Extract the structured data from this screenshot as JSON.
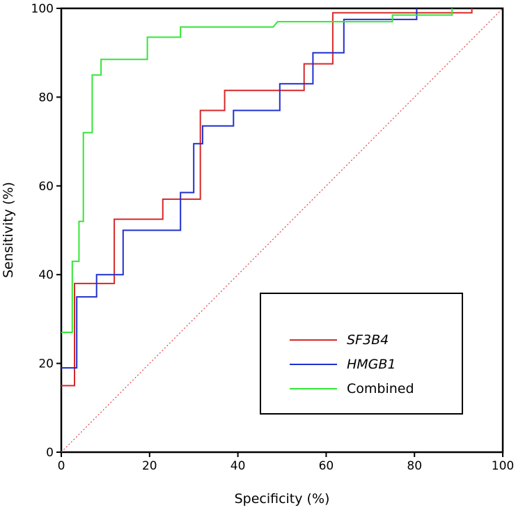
{
  "chart_data": {
    "type": "line",
    "title": "",
    "xlabel": "Specificity (%)",
    "ylabel": "Sensitivity (%)",
    "xlim": [
      0,
      100
    ],
    "ylim": [
      0,
      100
    ],
    "x_ticks": [
      "0",
      "20",
      "40",
      "60",
      "80",
      "100"
    ],
    "y_ticks": [
      "0",
      "20",
      "40",
      "60",
      "80",
      "100"
    ],
    "grid": false,
    "legend_position": "bottom-right",
    "reference_line": {
      "from": [
        0,
        0
      ],
      "to": [
        100,
        100
      ],
      "style": "dotted",
      "color": "#e05050"
    },
    "series": [
      {
        "name": "SF3B4",
        "italic": true,
        "color": "#d62728",
        "points": [
          [
            0,
            15
          ],
          [
            3,
            15
          ],
          [
            3,
            38
          ],
          [
            12,
            38
          ],
          [
            12,
            52.5
          ],
          [
            23,
            52.5
          ],
          [
            23,
            57
          ],
          [
            31.5,
            57
          ],
          [
            31.5,
            77
          ],
          [
            37,
            77
          ],
          [
            37,
            81.5
          ],
          [
            55,
            81.5
          ],
          [
            55,
            87.5
          ],
          [
            61.5,
            87.5
          ],
          [
            61.5,
            99
          ],
          [
            93,
            99
          ],
          [
            93,
            100
          ]
        ]
      },
      {
        "name": "HMGB1",
        "italic": true,
        "color": "#1f2fd0",
        "points": [
          [
            0,
            19
          ],
          [
            3.5,
            19
          ],
          [
            3.5,
            35
          ],
          [
            8,
            35
          ],
          [
            8,
            40
          ],
          [
            14,
            40
          ],
          [
            14,
            50
          ],
          [
            27,
            50
          ],
          [
            27,
            58.5
          ],
          [
            30,
            58.5
          ],
          [
            30,
            69.5
          ],
          [
            32,
            69.5
          ],
          [
            32,
            73.5
          ],
          [
            39,
            73.5
          ],
          [
            39,
            77
          ],
          [
            49.5,
            77
          ],
          [
            49.5,
            83
          ],
          [
            57,
            83
          ],
          [
            57,
            90
          ],
          [
            64,
            90
          ],
          [
            64,
            97.5
          ],
          [
            80.5,
            97.5
          ],
          [
            80.5,
            100
          ]
        ]
      },
      {
        "name": "Combined",
        "italic": false,
        "color": "#33e633",
        "points": [
          [
            0,
            27
          ],
          [
            2.5,
            27
          ],
          [
            2.5,
            43
          ],
          [
            4,
            43
          ],
          [
            4,
            52
          ],
          [
            5,
            52
          ],
          [
            5,
            72
          ],
          [
            7,
            72
          ],
          [
            7,
            85
          ],
          [
            9,
            85
          ],
          [
            9,
            88.5
          ],
          [
            19.5,
            88.5
          ],
          [
            19.5,
            93.5
          ],
          [
            27,
            93.5
          ],
          [
            27,
            95.8
          ],
          [
            48,
            95.8
          ],
          [
            49,
            97
          ],
          [
            75,
            97
          ],
          [
            75,
            98.5
          ],
          [
            88.5,
            98.5
          ],
          [
            88.5,
            100
          ]
        ]
      }
    ]
  }
}
